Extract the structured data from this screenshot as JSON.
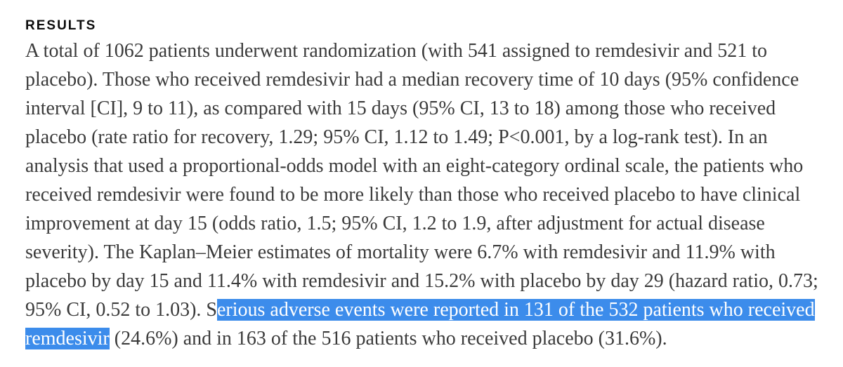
{
  "page": {
    "heading": "RESULTS",
    "paragraph": {
      "before_selection": "A total of 1062 patients underwent randomization (with 541 assigned to remdesivir and 521 to placebo). Those who received remdesivir had a median recovery time of 10 days (95% confidence interval [CI], 9 to 11), as compared with 15 days (95% CI, 13 to 18) among those who received placebo (rate ratio for recovery, 1.29; 95% CI, 1.12 to 1.49; P<0.001, by a log-rank test). In an analysis that used a proportional-odds model with an eight-category ordinal scale, the patients who received remdesivir were found to be more likely than those who received placebo to have clinical improvement at day 15 (odds ratio, 1.5; 95% CI, 1.2 to 1.9, after adjustment for actual disease severity). The Kaplan–Meier estimates of mortality were 6.7% with remdesivir and 11.9% with placebo by day 15 and 11.4% with remdesivir and 15.2% with placebo by day 29 (hazard ratio, 0.73; 95% CI, 0.52 to 1.03). S",
      "selected": "erious adverse events were reported in 131 of the 532 patients who received remdesivir",
      "after_selection": " (24.6%) and in 163 of the 516 patients who received placebo (31.6%)."
    },
    "colors": {
      "selection_background": "#3c8ceb",
      "selection_text": "#ffffff",
      "body_text": "#3b3b3b",
      "heading_text": "#0d0d0d",
      "page_background": "#ffffff"
    }
  }
}
